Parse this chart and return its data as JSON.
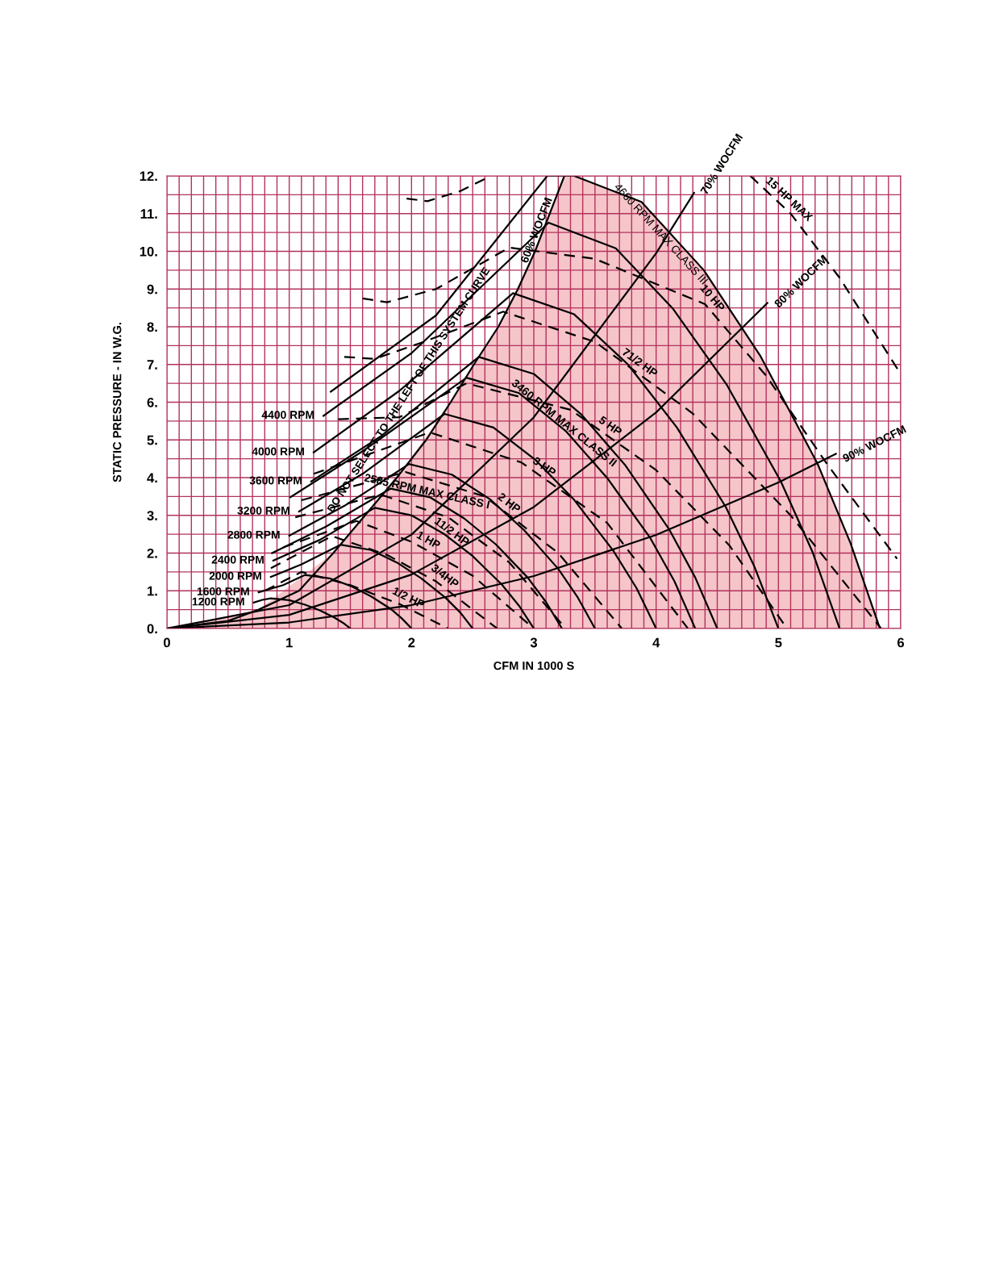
{
  "chart_data": {
    "type": "line",
    "xlabel": "CFM IN 1000 S",
    "ylabel": "STATIC PRESSURE - IN W.G.",
    "xlim": [
      0,
      6
    ],
    "ylim": [
      0,
      12
    ],
    "xticks": [
      0,
      {
        "value": 0.1,
        "label": null
      },
      {
        "value": 0.2,
        "label": null
      },
      {
        "value": 0.3,
        "label": null
      },
      {
        "value": 0.4,
        "label": null
      },
      {
        "value": 0.5,
        "label": null
      },
      {
        "value": 0.6,
        "label": null
      },
      {
        "value": 0.7,
        "label": null
      },
      {
        "value": 0.8,
        "label": null
      },
      {
        "value": 0.9,
        "label": null
      },
      1,
      {
        "value": 1.1,
        "label": null
      },
      {
        "value": 1.2,
        "label": null
      },
      {
        "value": 1.3,
        "label": null
      },
      {
        "value": 1.4,
        "label": null
      },
      {
        "value": 1.5,
        "label": null
      },
      {
        "value": 1.6,
        "label": null
      },
      {
        "value": 1.7,
        "label": null
      },
      {
        "value": 1.8,
        "label": null
      },
      {
        "value": 1.9,
        "label": null
      },
      2,
      {
        "value": 2.1,
        "label": null
      },
      {
        "value": 2.2,
        "label": null
      },
      {
        "value": 2.3,
        "label": null
      },
      {
        "value": 2.4,
        "label": null
      },
      {
        "value": 2.5,
        "label": null
      },
      {
        "value": 2.6,
        "label": null
      },
      {
        "value": 2.7,
        "label": null
      },
      {
        "value": 2.8,
        "label": null
      },
      {
        "value": 2.9,
        "label": null
      },
      3,
      {
        "value": 3.1,
        "label": null
      },
      {
        "value": 3.2,
        "label": null
      },
      {
        "value": 3.3,
        "label": null
      },
      {
        "value": 3.4,
        "label": null
      },
      {
        "value": 3.5,
        "label": null
      },
      {
        "value": 3.6,
        "label": null
      },
      {
        "value": 3.7,
        "label": null
      },
      {
        "value": 3.8,
        "label": null
      },
      {
        "value": 3.9,
        "label": null
      },
      4,
      {
        "value": 4.1,
        "label": null
      },
      {
        "value": 4.2,
        "label": null
      },
      {
        "value": 4.3,
        "label": null
      },
      {
        "value": 4.4,
        "label": null
      },
      {
        "value": 4.5,
        "label": null
      },
      {
        "value": 4.6,
        "label": null
      },
      {
        "value": 4.7,
        "label": null
      },
      {
        "value": 4.8,
        "label": null
      },
      {
        "value": 4.9,
        "label": null
      },
      5,
      {
        "value": 5.1,
        "label": null
      },
      {
        "value": 5.2,
        "label": null
      },
      {
        "value": 5.3,
        "label": null
      },
      {
        "value": 5.4,
        "label": null
      },
      {
        "value": 5.5,
        "label": null
      },
      {
        "value": 5.6,
        "label": null
      },
      {
        "value": 5.7,
        "label": null
      },
      {
        "value": 5.8,
        "label": null
      },
      {
        "value": 5.9,
        "label": null
      },
      6
    ],
    "yticks": [
      {
        "value": 0,
        "label": "0."
      },
      {
        "value": 0.5,
        "label": null
      },
      {
        "value": 1,
        "label": "1."
      },
      {
        "value": 1.5,
        "label": null
      },
      {
        "value": 2,
        "label": "2."
      },
      {
        "value": 2.5,
        "label": null
      },
      {
        "value": 3,
        "label": "3."
      },
      {
        "value": 3.5,
        "label": null
      },
      {
        "value": 4,
        "label": "4."
      },
      {
        "value": 4.5,
        "label": null
      },
      {
        "value": 5,
        "label": "5."
      },
      {
        "value": 5.5,
        "label": null
      },
      {
        "value": 6,
        "label": "6."
      },
      {
        "value": 6.5,
        "label": null
      },
      {
        "value": 7,
        "label": "7."
      },
      {
        "value": 7.5,
        "label": null
      },
      {
        "value": 8,
        "label": "8."
      },
      {
        "value": 8.5,
        "label": null
      },
      {
        "value": 9,
        "label": "9."
      },
      {
        "value": 9.5,
        "label": null
      },
      {
        "value": 10,
        "label": "10."
      },
      {
        "value": 10.5,
        "label": null
      },
      {
        "value": 11,
        "label": "11."
      },
      {
        "value": 11.5,
        "label": null
      },
      {
        "value": 12,
        "label": "12."
      }
    ],
    "grid": true,
    "legend": false,
    "annotations": [
      {
        "text": "DO NOT SELECT TO THE LEFT OF THIS SYSTEM CURVE",
        "x": 2.2,
        "y": 6.2
      }
    ],
    "series": [
      {
        "name": "1200 RPM",
        "color": "#000000",
        "line_style": "solid",
        "x": [
          0.71,
          0.78,
          0.85,
          1.0,
          1.13,
          1.25,
          1.37,
          1.44,
          1.5
        ],
        "values": [
          0.69,
          0.76,
          0.8,
          0.75,
          0.63,
          0.48,
          0.29,
          0.15,
          0
        ]
      },
      {
        "name": "1600 RPM",
        "color": "#000000",
        "line_style": "solid",
        "x": [
          0.75,
          0.95,
          1.13,
          1.33,
          1.51,
          1.67,
          1.83,
          1.92,
          2.0
        ],
        "values": [
          0.96,
          1.15,
          1.42,
          1.33,
          1.12,
          0.85,
          0.52,
          0.27,
          0
        ]
      },
      {
        "name": "2000 RPM",
        "color": "#000000",
        "line_style": "solid",
        "x": [
          0.85,
          1.1,
          1.42,
          1.67,
          1.88,
          2.08,
          2.28,
          2.4,
          2.5
        ],
        "values": [
          1.37,
          1.7,
          2.22,
          2.08,
          1.75,
          1.33,
          0.81,
          0.42,
          0
        ]
      },
      {
        "name": "2400 RPM",
        "color": "#000000",
        "line_style": "solid",
        "x": [
          0.87,
          1.25,
          1.7,
          2.0,
          2.26,
          2.5,
          2.74,
          2.88,
          3.0
        ],
        "values": [
          1.8,
          2.35,
          3.2,
          3.0,
          2.52,
          1.92,
          1.16,
          0.6,
          0
        ]
      },
      {
        "name": "2585 RPM MAX CLASS I",
        "color": "#000000",
        "line_style": "solid",
        "x": [
          0.86,
          1.3,
          1.83,
          2.15,
          2.43,
          2.69,
          2.95,
          3.1,
          3.23
        ],
        "values": [
          2.0,
          2.7,
          3.71,
          3.48,
          2.92,
          2.23,
          1.35,
          0.7,
          0
        ]
      },
      {
        "name": "2800 RPM",
        "color": "#000000",
        "line_style": "solid",
        "x": [
          1.0,
          1.45,
          1.98,
          2.33,
          2.64,
          2.92,
          3.2,
          3.36,
          3.5
        ],
        "values": [
          2.46,
          3.25,
          4.36,
          4.08,
          3.43,
          2.61,
          1.58,
          0.82,
          0
        ]
      },
      {
        "name": "3200 RPM",
        "color": "#000000",
        "line_style": "solid",
        "x": [
          1.08,
          1.6,
          2.27,
          2.67,
          3.01,
          3.33,
          3.65,
          3.84,
          4.0
        ],
        "values": [
          3.1,
          4.1,
          5.69,
          5.33,
          4.48,
          3.41,
          2.06,
          1.07,
          0
        ]
      },
      {
        "name": "3460 RPM MAX CLASS II",
        "color": "#000000",
        "line_style": "solid",
        "x": [
          1.01,
          1.6,
          2.45,
          2.88,
          3.26,
          3.6,
          3.95,
          4.15,
          4.32
        ],
        "values": [
          3.48,
          4.7,
          6.65,
          6.24,
          5.24,
          3.99,
          2.41,
          1.25,
          0
        ]
      },
      {
        "name": "3600 RPM",
        "color": "#000000",
        "line_style": "solid",
        "x": [
          1.18,
          1.75,
          2.55,
          3.0,
          3.39,
          3.75,
          4.11,
          4.32,
          4.5
        ],
        "values": [
          3.9,
          5.1,
          7.2,
          6.75,
          5.67,
          4.32,
          2.61,
          1.35,
          0
        ]
      },
      {
        "name": "4000 RPM",
        "color": "#000000",
        "line_style": "solid",
        "x": [
          1.2,
          1.9,
          2.83,
          3.33,
          3.77,
          4.17,
          4.57,
          4.8,
          5.0
        ],
        "values": [
          4.67,
          6.3,
          8.89,
          8.33,
          7.0,
          5.33,
          3.22,
          1.67,
          0
        ]
      },
      {
        "name": "4400 RPM",
        "color": "#000000",
        "line_style": "solid",
        "x": [
          1.28,
          2.0,
          3.12,
          3.67,
          4.14,
          4.58,
          5.02,
          5.28,
          5.5
        ],
        "values": [
          5.64,
          7.3,
          10.76,
          10.08,
          8.47,
          6.45,
          3.9,
          2.02,
          0
        ]
      },
      {
        "name": "4660 RPM MAX CLASS III",
        "color": "#000000",
        "line_style": "solid",
        "x": [
          1.34,
          2.2,
          3.11,
          3.33,
          3.88,
          4.39,
          4.85,
          5.32,
          5.59,
          5.83
        ],
        "values": [
          6.28,
          8.3,
          12.0,
          12.0,
          11.31,
          9.5,
          7.24,
          4.37,
          2.26,
          0
        ]
      },
      {
        "name": "1/2 HP",
        "color": "#000000",
        "line_style": "dashed",
        "x": [
          0.8,
          1.1,
          1.5,
          1.9,
          2.3
        ],
        "values": [
          1.0,
          1.5,
          1.15,
          0.65,
          0
        ]
      },
      {
        "name": "3/4HP",
        "color": "#000000",
        "line_style": "dashed",
        "x": [
          0.85,
          1.35,
          1.8,
          2.2,
          2.7
        ],
        "values": [
          1.6,
          2.45,
          1.95,
          1.25,
          0
        ]
      },
      {
        "name": "1 HP",
        "color": "#000000",
        "line_style": "dashed",
        "x": [
          0.95,
          1.55,
          2.0,
          2.5,
          3.0
        ],
        "values": [
          2.15,
          2.85,
          2.3,
          1.4,
          0
        ]
      },
      {
        "name": "11/2 HP",
        "color": "#000000",
        "line_style": "dashed",
        "x": [
          1.05,
          1.75,
          2.3,
          2.8,
          3.26
        ],
        "values": [
          2.95,
          3.55,
          2.95,
          1.75,
          0
        ]
      },
      {
        "name": "2 HP",
        "color": "#000000",
        "line_style": "dashed",
        "x": [
          1.1,
          1.95,
          2.6,
          3.2,
          3.72
        ],
        "values": [
          3.4,
          4.15,
          3.5,
          2.0,
          0
        ]
      },
      {
        "name": "3 HP",
        "color": "#000000",
        "line_style": "dashed",
        "x": [
          1.2,
          2.15,
          2.9,
          3.6,
          4.26
        ],
        "values": [
          4.1,
          5.2,
          4.4,
          2.8,
          0
        ]
      },
      {
        "name": "5 HP",
        "color": "#000000",
        "line_style": "dashed",
        "x": [
          1.4,
          1.9,
          2.45,
          3.3,
          4.0,
          4.6,
          5.07
        ],
        "values": [
          5.55,
          5.6,
          6.5,
          5.8,
          4.2,
          2.2,
          0
        ]
      },
      {
        "name": "71/2 HP",
        "color": "#000000",
        "line_style": "dashed",
        "x": [
          1.45,
          1.7,
          2.1,
          2.75,
          3.5,
          4.3,
          5.1,
          5.84
        ],
        "values": [
          7.2,
          7.15,
          7.6,
          8.4,
          7.6,
          5.7,
          3.0,
          0
        ]
      },
      {
        "name": "10 HP",
        "color": "#000000",
        "line_style": "dashed",
        "x": [
          1.6,
          1.8,
          2.2,
          2.8,
          3.5,
          4.4,
          4.9,
          5.4,
          5.97
        ],
        "values": [
          8.75,
          8.65,
          9.0,
          10.1,
          9.8,
          8.6,
          6.7,
          4.35,
          1.85
        ]
      },
      {
        "name": "15 HP MAX",
        "color": "#000000",
        "line_style": "dashed",
        "x": [
          4.77,
          5.1,
          5.5,
          5.98
        ],
        "values": [
          12.0,
          11.0,
          9.3,
          6.85
        ]
      },
      {
        "color": "#000000",
        "line_style": "dashed",
        "x": [
          1.96,
          2.13,
          2.4,
          2.65
        ],
        "values": [
          11.4,
          11.33,
          11.6,
          12.0
        ]
      },
      {
        "name": "60% WOCFM",
        "color": "#000000",
        "line_style": "solid",
        "x": [
          0,
          0.5,
          0.75,
          1.08,
          1.36,
          1.62,
          1.88,
          2.12,
          2.32,
          2.51,
          2.71,
          2.87,
          3.01,
          3.13,
          3.25
        ],
        "values": [
          0,
          0.2,
          0.5,
          1.0,
          2.0,
          3.0,
          4.0,
          5.0,
          6.0,
          7.0,
          8.0,
          9.0,
          10.0,
          11.0,
          12.0
        ]
      },
      {
        "name": "70% WOCFM",
        "color": "#000000",
        "line_style": "solid",
        "x": [
          0,
          1,
          2,
          3,
          4,
          4.31
        ],
        "values": [
          0,
          0.62,
          2.49,
          5.6,
          9.95,
          11.55
        ]
      },
      {
        "name": "80% WOCFM",
        "color": "#000000",
        "line_style": "solid",
        "x": [
          0,
          1,
          2,
          3,
          4,
          4.91
        ],
        "values": [
          0,
          0.36,
          1.43,
          3.22,
          5.73,
          8.63
        ]
      },
      {
        "name": "90% WOCFM",
        "color": "#000000",
        "line_style": "solid",
        "x": [
          0,
          1,
          2,
          3,
          4,
          5,
          5.47
        ],
        "values": [
          0,
          0.16,
          0.62,
          1.39,
          2.48,
          3.87,
          4.63
        ]
      },
      {
        "type": "area",
        "color": "#f5c5c9",
        "x": [
          0,
          0.75,
          1.36,
          1.88,
          2.32,
          2.71,
          3.01,
          3.25,
          3.33,
          3.88,
          4.39,
          4.85,
          5.32,
          5.59,
          5.83
        ],
        "values": [
          0,
          0.5,
          2.0,
          4.0,
          6.0,
          8.0,
          10.0,
          12.0,
          12.0,
          11.31,
          9.5,
          7.24,
          4.37,
          2.26,
          0
        ]
      }
    ]
  }
}
